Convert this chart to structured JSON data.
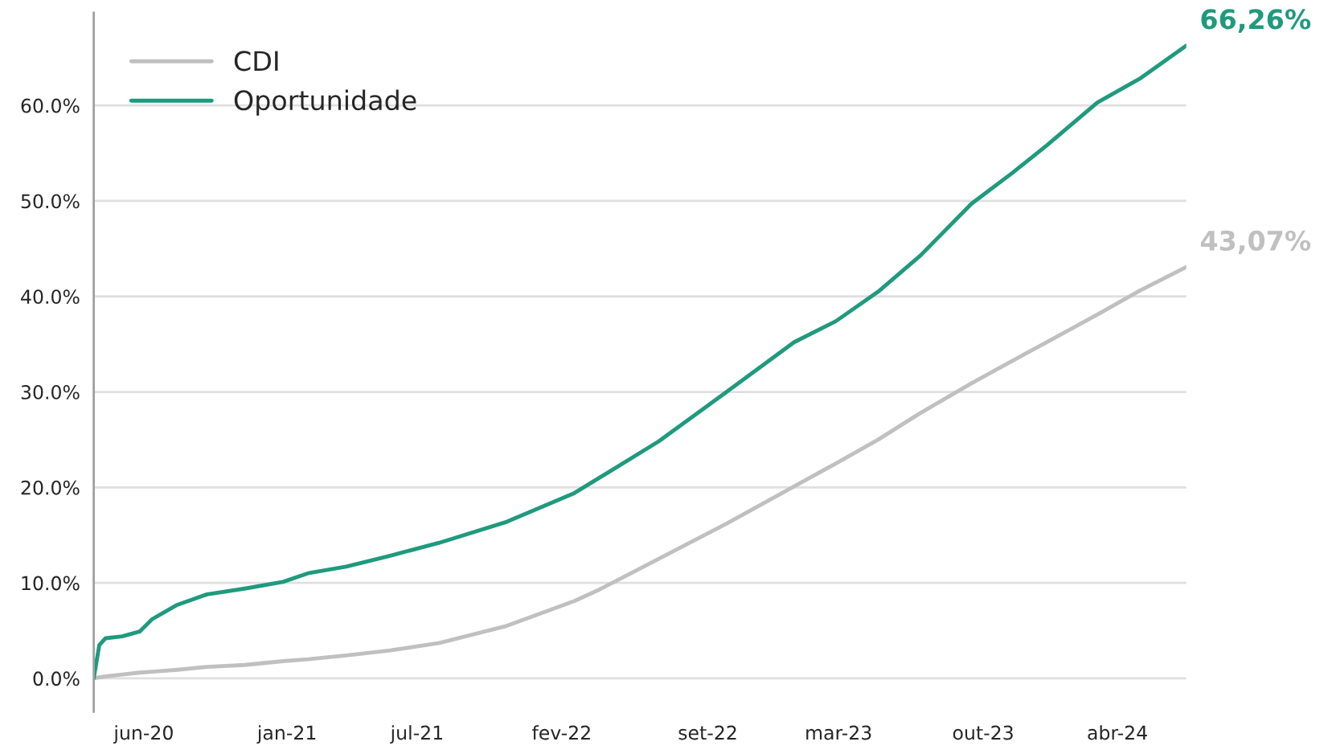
{
  "chart_data": {
    "type": "line",
    "x": [
      "2020-04-01",
      "2020-04-09",
      "2020-04-18",
      "2020-05-12",
      "2020-06-06",
      "2020-06-24",
      "2020-07-30",
      "2020-09-11",
      "2020-11-04",
      "2020-12-29",
      "2021-02-03",
      "2021-03-30",
      "2021-05-30",
      "2021-08-11",
      "2021-11-16",
      "2022-02-21",
      "2022-03-29",
      "2022-06-22",
      "2022-09-28",
      "2023-01-03",
      "2023-03-04",
      "2023-05-04",
      "2023-07-04",
      "2023-09-15",
      "2023-11-14",
      "2024-01-01",
      "2024-03-14",
      "2024-05-14",
      "2024-07-20"
    ],
    "series": [
      {
        "name": "CDI",
        "color": "#c0c0c0",
        "values": [
          0,
          0.1,
          0.2,
          0.4,
          0.6,
          0.7,
          0.9,
          1.2,
          1.4,
          1.8,
          2.0,
          2.4,
          2.9,
          3.7,
          5.5,
          8.1,
          9.3,
          12.5,
          16.2,
          20.1,
          22.5,
          25.0,
          27.8,
          30.9,
          33.3,
          35.2,
          38.1,
          40.6,
          43.07
        ]
      },
      {
        "name": "Oportunidade",
        "color": "#1f9a7e",
        "values": [
          0,
          3.5,
          4.2,
          4.4,
          4.9,
          6.2,
          7.7,
          8.8,
          9.4,
          10.1,
          11.0,
          11.7,
          12.8,
          14.2,
          16.4,
          19.4,
          21.0,
          24.8,
          30.0,
          35.2,
          37.4,
          40.5,
          44.3,
          49.7,
          53.0,
          55.8,
          60.3,
          62.8,
          66.26
        ]
      }
    ],
    "xlim": [
      "2020-04-01",
      "2024-07-20"
    ],
    "xticks": [
      {
        "value": "2020-06-12",
        "label": "jun-20"
      },
      {
        "value": "2021-01-04",
        "label": "jan-21"
      },
      {
        "value": "2021-07-10",
        "label": "jul-21"
      },
      {
        "value": "2022-02-03",
        "label": "fev-22"
      },
      {
        "value": "2022-09-01",
        "label": "set-22"
      },
      {
        "value": "2023-03-08",
        "label": "mar-23"
      },
      {
        "value": "2023-10-02",
        "label": "out-23"
      },
      {
        "value": "2024-04-12",
        "label": "abr-24"
      }
    ],
    "ylim": [
      -3.5,
      69.7
    ],
    "yticks": [
      {
        "value": 0,
        "label": "0.0%"
      },
      {
        "value": 10,
        "label": "10.0%"
      },
      {
        "value": 20,
        "label": "20.0%"
      },
      {
        "value": 30,
        "label": "30.0%"
      },
      {
        "value": 40,
        "label": "40.0%"
      },
      {
        "value": 50,
        "label": "50.0%"
      },
      {
        "value": 60,
        "label": "60.0%"
      }
    ],
    "grid": "y",
    "legend": "top left",
    "line_style": "solid",
    "annotations": [
      {
        "text": "66,26%",
        "x": "2024-07-20",
        "y": 66.26
      },
      {
        "text": "43,07%",
        "x": "2024-07-20",
        "y": 43.07
      }
    ]
  }
}
